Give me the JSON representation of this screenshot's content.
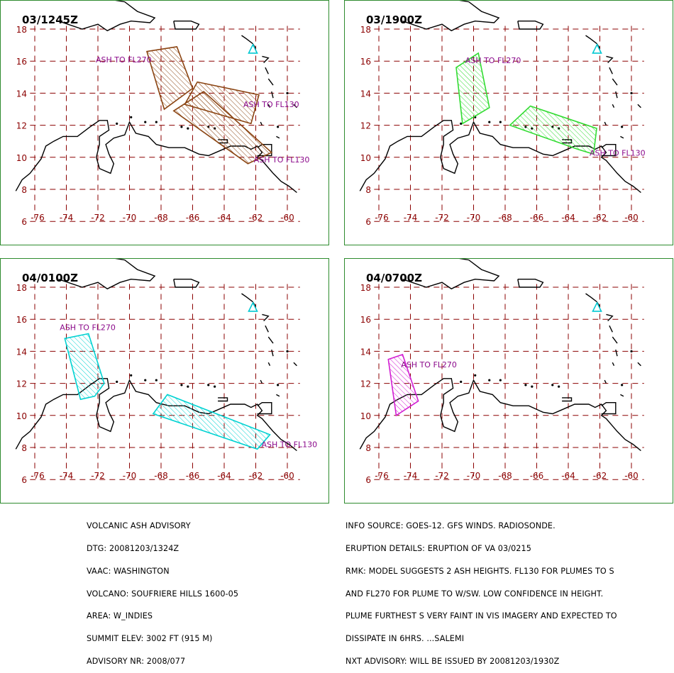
{
  "colors": {
    "frame": "#2e8b2e",
    "grid": "#8b0000",
    "coast": "#000000",
    "volcano": "#00c8d2",
    "label": "#8b0a8b"
  },
  "lat_labels": [
    "18",
    "16",
    "14",
    "12",
    "10",
    "8",
    "6"
  ],
  "lon_labels": [
    "-76",
    "-74",
    "-72",
    "-70",
    "-68",
    "-66",
    "-64",
    "-62",
    "-60"
  ],
  "panels": [
    {
      "time": "03/1245Z",
      "color": "#8b4513",
      "areas": [
        {
          "label": "ASH TO FL270",
          "poly": [
            [
              -68.9,
              16.6
            ],
            [
              -67.0,
              16.9
            ],
            [
              -66.0,
              14.3
            ],
            [
              -67.8,
              13.0
            ]
          ]
        },
        {
          "label": "ASH TO FL130",
          "poly": [
            [
              -65.7,
              14.7
            ],
            [
              -61.8,
              13.9
            ],
            [
              -62.3,
              12.1
            ],
            [
              -66.5,
              13.3
            ]
          ]
        },
        {
          "label": "ASH TO FL130",
          "poly": [
            [
              -67.2,
              12.9
            ],
            [
              -65.3,
              14.1
            ],
            [
              -61.0,
              10.3
            ],
            [
              -62.5,
              9.6
            ]
          ]
        }
      ]
    },
    {
      "time": "03/1900Z",
      "color": "#32dc32",
      "areas": [
        {
          "label": "ASH TO FL270",
          "poly": [
            [
              -71.1,
              15.6
            ],
            [
              -69.7,
              16.5
            ],
            [
              -69.0,
              13.1
            ],
            [
              -70.7,
              12.1
            ]
          ]
        },
        {
          "label": "ASH TO FL130",
          "poly": [
            [
              -67.7,
              12.0
            ],
            [
              -66.4,
              13.2
            ],
            [
              -62.2,
              11.8
            ],
            [
              -62.4,
              10.2
            ],
            [
              -63.4,
              10.5
            ]
          ]
        }
      ]
    },
    {
      "time": "04/0100Z",
      "color": "#00d2d2",
      "areas": [
        {
          "label": "ASH TO FL270",
          "poly": [
            [
              -74.1,
              14.8
            ],
            [
              -72.6,
              15.1
            ],
            [
              -71.6,
              12.0
            ],
            [
              -72.2,
              11.2
            ],
            [
              -73.1,
              11.0
            ]
          ]
        },
        {
          "label": "ASH TO FL130",
          "poly": [
            [
              -68.5,
              10.1
            ],
            [
              -67.6,
              11.3
            ],
            [
              -61.1,
              8.8
            ],
            [
              -61.9,
              7.9
            ]
          ]
        }
      ]
    },
    {
      "time": "04/0700Z",
      "color": "#d21ed2",
      "areas": [
        {
          "label": "ASH TO FL270",
          "poly": [
            [
              -75.4,
              13.5
            ],
            [
              -74.5,
              13.8
            ],
            [
              -73.5,
              10.9
            ],
            [
              -74.9,
              10.0
            ]
          ]
        }
      ]
    }
  ],
  "footer_left": [
    "VOLCANIC ASH ADVISORY",
    "DTG: 20081203/1324Z",
    "VAAC: WASHINGTON",
    "VOLCANO: SOUFRIERE HILLS 1600-05",
    "AREA: W_INDIES",
    "SUMMIT ELEV: 3002 FT (915 M)",
    "ADVISORY NR: 2008/077"
  ],
  "footer_right": [
    "INFO SOURCE: GOES-12. GFS WINDS. RADIOSONDE.",
    "ERUPTION DETAILS: ERUPTION OF VA 03/0215",
    "RMK: MODEL SUGGESTS 2 ASH HEIGHTS. FL130 FOR PLUMES TO S",
    "AND FL270 FOR PLUME TO W/SW. LOW CONFIDENCE IN HEIGHT.",
    "PLUME FURTHEST S VERY FAINT IN VIS IMAGERY AND EXPECTED TO",
    "DISSIPATE IN 6HRS. ...SALEMI",
    "NXT ADVISORY: WILL BE ISSUED BY 20081203/1930Z"
  ]
}
